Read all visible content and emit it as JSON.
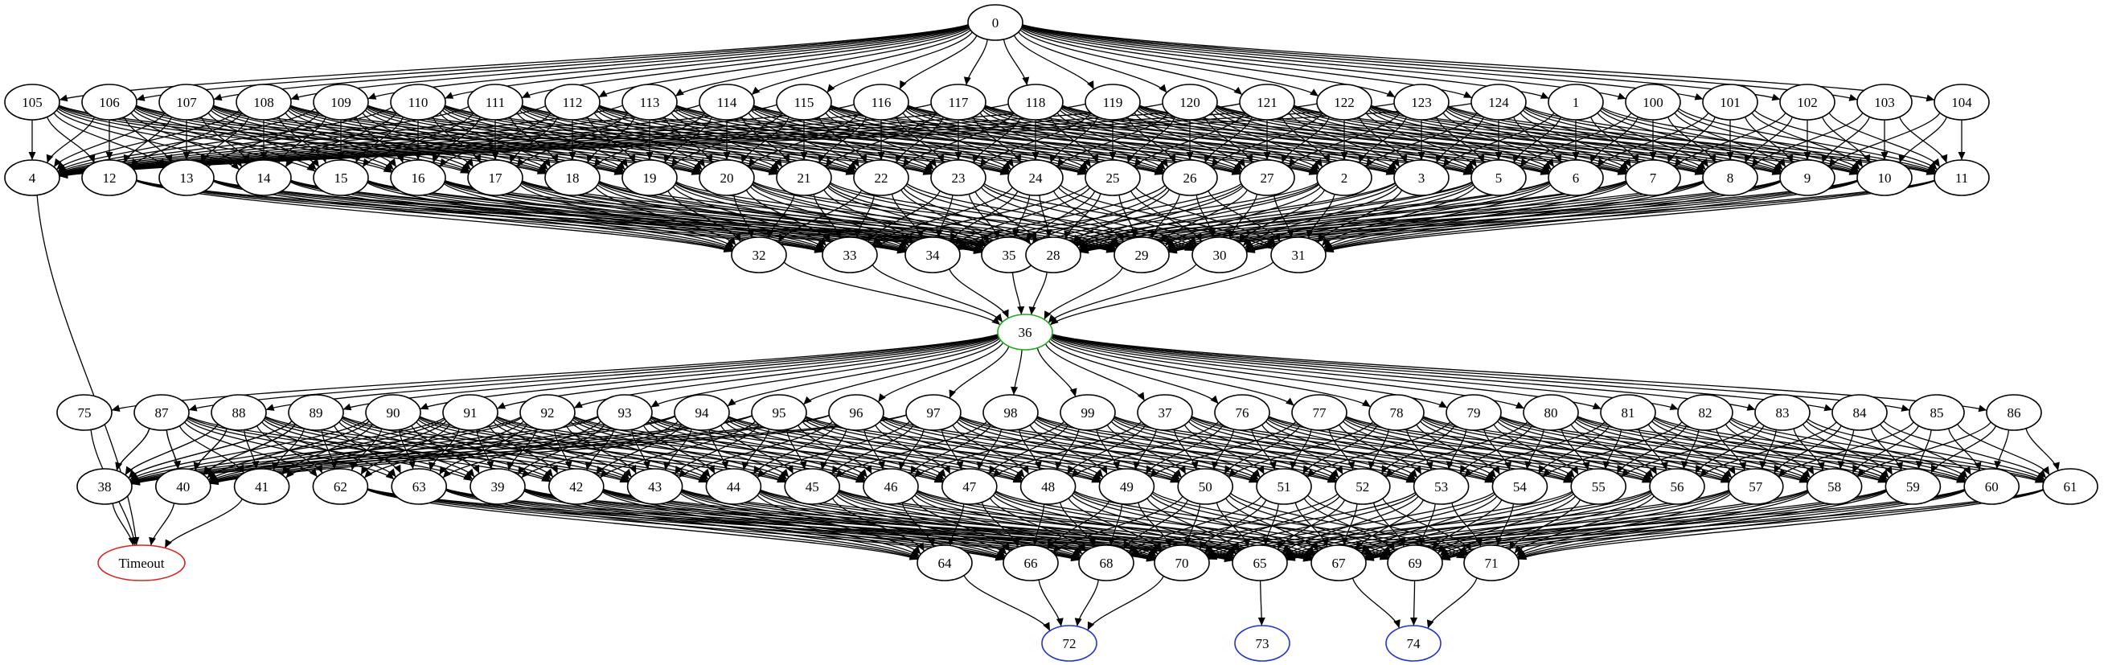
{
  "graph": {
    "node_colors": {
      "default": "#000000",
      "start": "#22aa22",
      "timeout": "#dd2222",
      "terminal": "#2233cc"
    },
    "rows": [
      {
        "nodes": [
          "0"
        ]
      },
      {
        "nodes": [
          "105",
          "106",
          "107",
          "108",
          "109",
          "110",
          "111",
          "112",
          "113",
          "114",
          "115",
          "116",
          "117",
          "118",
          "119",
          "120",
          "121",
          "122",
          "123",
          "124",
          "1",
          "100",
          "101",
          "102",
          "103",
          "104"
        ]
      },
      {
        "nodes": [
          "4",
          "12",
          "13",
          "14",
          "15",
          "16",
          "17",
          "18",
          "19",
          "20",
          "21",
          "22",
          "23",
          "24",
          "25",
          "26",
          "27",
          "2",
          "3",
          "5",
          "6",
          "7",
          "8",
          "9",
          "10",
          "11"
        ]
      },
      {
        "nodes": [
          "32",
          "33",
          "34",
          "35",
          "28",
          "29",
          "30",
          "31"
        ]
      },
      {
        "nodes": [
          "36"
        ]
      },
      {
        "nodes": [
          "75",
          "87",
          "88",
          "89",
          "90",
          "91",
          "92",
          "93",
          "94",
          "95",
          "96",
          "97",
          "98",
          "99",
          "37",
          "76",
          "77",
          "78",
          "79",
          "80",
          "81",
          "82",
          "83",
          "84",
          "85",
          "86"
        ]
      },
      {
        "nodes": [
          "38",
          "40",
          "41",
          "62",
          "63",
          "39",
          "42",
          "43",
          "44",
          "45",
          "46",
          "47",
          "48",
          "49",
          "50",
          "51",
          "52",
          "53",
          "54",
          "55",
          "56",
          "57",
          "58",
          "59",
          "60",
          "61"
        ]
      },
      {
        "nodes": [
          "Timeout",
          "64",
          "66",
          "68",
          "70",
          "65",
          "67",
          "69",
          "71"
        ]
      },
      {
        "nodes": [
          "72",
          "73",
          "74"
        ]
      }
    ],
    "special_nodes": {
      "start": "36",
      "timeout": "Timeout",
      "terminals": [
        "72",
        "73",
        "74"
      ]
    },
    "edges_described": [
      [
        "0",
        "all row-2 nodes"
      ],
      [
        "row-2 nodes",
        "row-3 nodes (dense)"
      ],
      [
        "row-3 nodes",
        "32, 33, 34, 35, 28, 29, 30, 31 (dense)"
      ],
      [
        "32",
        "36"
      ],
      [
        "33",
        "36"
      ],
      [
        "34",
        "36"
      ],
      [
        "35",
        "36"
      ],
      [
        "28",
        "36"
      ],
      [
        "29",
        "36"
      ],
      [
        "30",
        "36"
      ],
      [
        "31",
        "36"
      ],
      [
        "36",
        "all row-6 nodes"
      ],
      [
        "row-6 nodes",
        "row-7 nodes (dense)"
      ],
      [
        "row-7 nodes",
        "64, 66, 68, 70, 65, 67, 69, 71 (dense)"
      ],
      [
        "4",
        "Timeout"
      ],
      [
        "75",
        "Timeout"
      ],
      [
        "38",
        "Timeout"
      ],
      [
        "40",
        "Timeout"
      ],
      [
        "41",
        "Timeout"
      ],
      [
        "64",
        "72"
      ],
      [
        "66",
        "72"
      ],
      [
        "68",
        "72"
      ],
      [
        "70",
        "72"
      ],
      [
        "65",
        "73"
      ],
      [
        "67",
        "74"
      ],
      [
        "69",
        "74"
      ],
      [
        "71",
        "74"
      ]
    ]
  }
}
